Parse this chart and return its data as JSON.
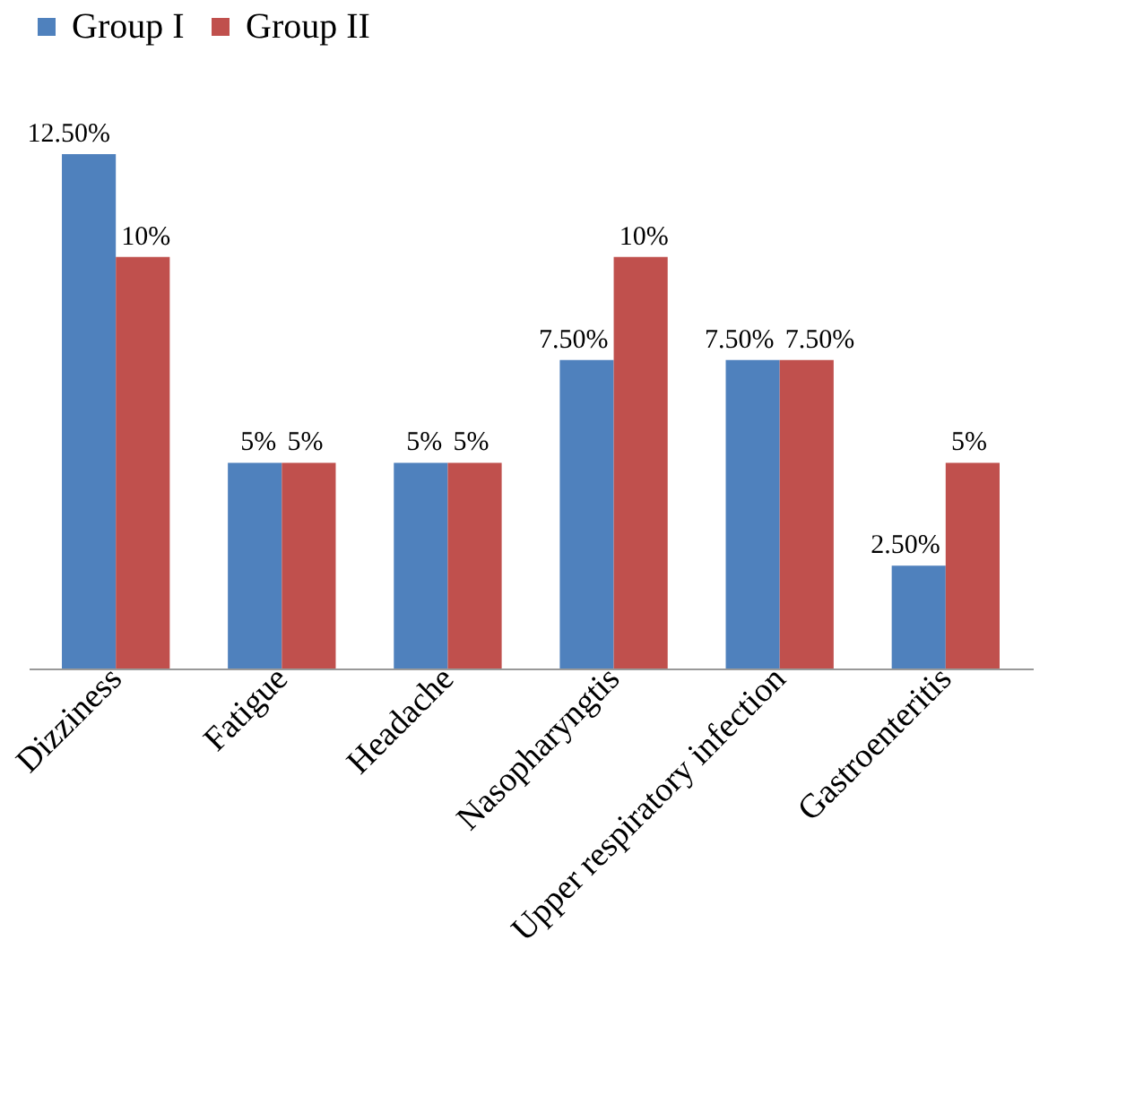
{
  "chart_data": {
    "type": "bar",
    "categories": [
      "Dizziness",
      "Fatigue",
      "Headache",
      "Nasopharyngtis",
      "Upper respiratory infection",
      "Gastroenteritis"
    ],
    "series": [
      {
        "name": "Group I",
        "color": "#4f81bd",
        "values": [
          12.5,
          5,
          5,
          7.5,
          7.5,
          2.5
        ],
        "value_labels": [
          "12.50%",
          "5%",
          "5%",
          "7.50%",
          "7.50%",
          "2.50%"
        ]
      },
      {
        "name": "Group II",
        "color": "#c0504d",
        "values": [
          10,
          5,
          5,
          10,
          7.5,
          5
        ],
        "value_labels": [
          "10%",
          "5%",
          "5%",
          "10%",
          "7.50%",
          "5%"
        ]
      }
    ],
    "legend": "top",
    "grid": false
  }
}
